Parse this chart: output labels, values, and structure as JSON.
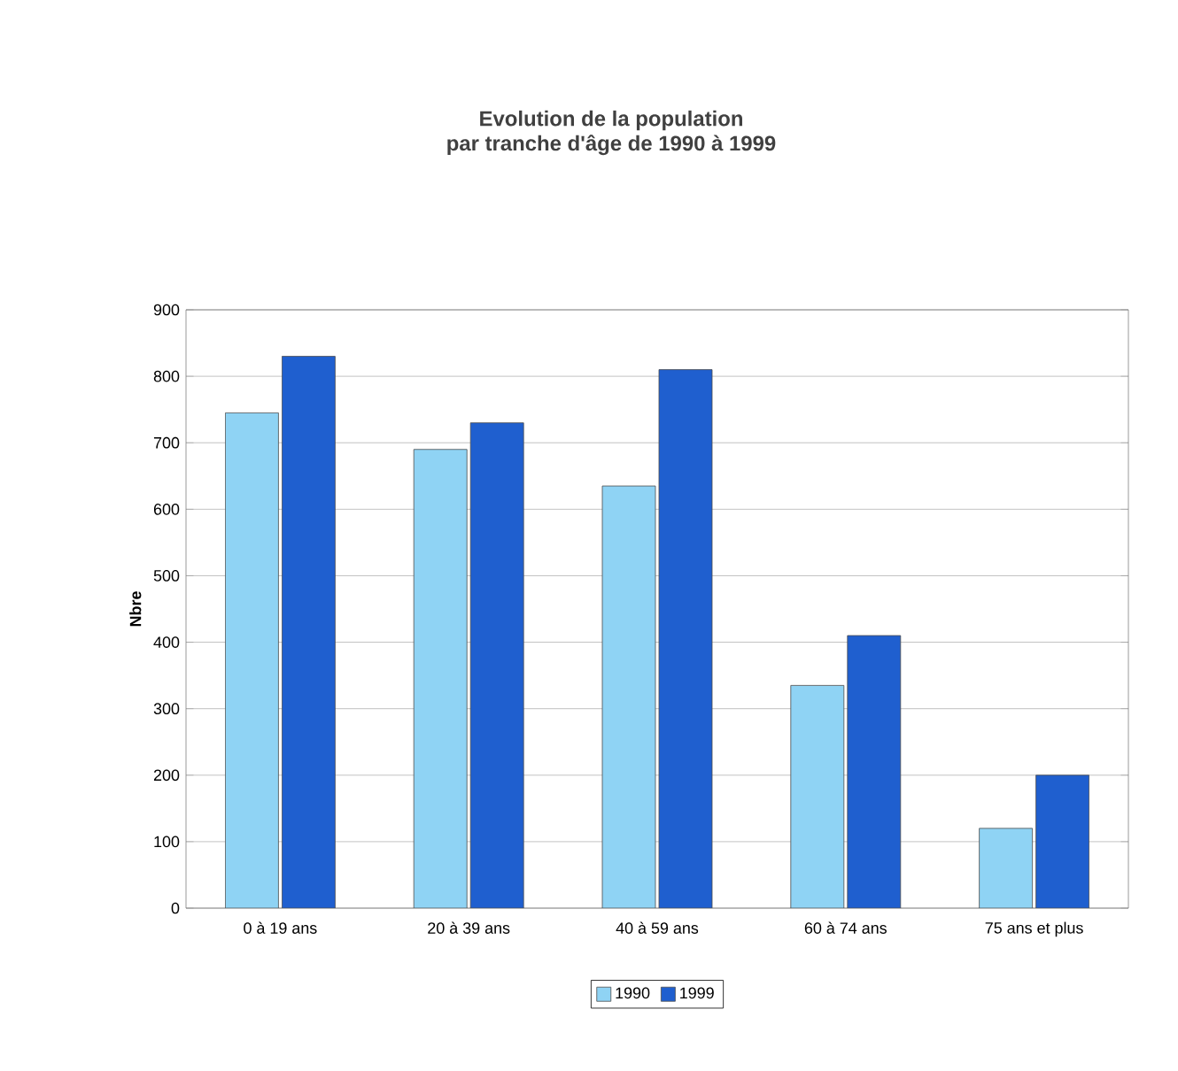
{
  "chart_data": {
    "type": "bar",
    "title": "Evolution de la population\npar tranche d'âge de 1990 à 1999",
    "ylabel": "Nbre",
    "categories": [
      "0 à 19 ans",
      "20 à 39 ans",
      "40 à 59 ans",
      "60 à 74 ans",
      "75 ans et plus"
    ],
    "series": [
      {
        "name": "1990",
        "color": "#8fd3f4",
        "values": [
          745,
          690,
          635,
          335,
          120
        ]
      },
      {
        "name": "1999",
        "color": "#1f5fcf",
        "values": [
          830,
          730,
          810,
          410,
          200
        ]
      }
    ],
    "ylim": [
      0,
      900
    ],
    "yticks": [
      0,
      100,
      200,
      300,
      400,
      500,
      600,
      700,
      800,
      900
    ],
    "grid": "y",
    "legend": "bottom"
  }
}
